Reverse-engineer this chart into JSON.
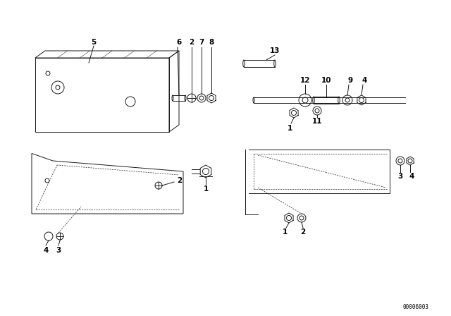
{
  "bg_color": "#ffffff",
  "line_color": "#1a1a1a",
  "part_number": "00006003",
  "fig_w": 6.4,
  "fig_h": 4.48,
  "dpi": 100
}
